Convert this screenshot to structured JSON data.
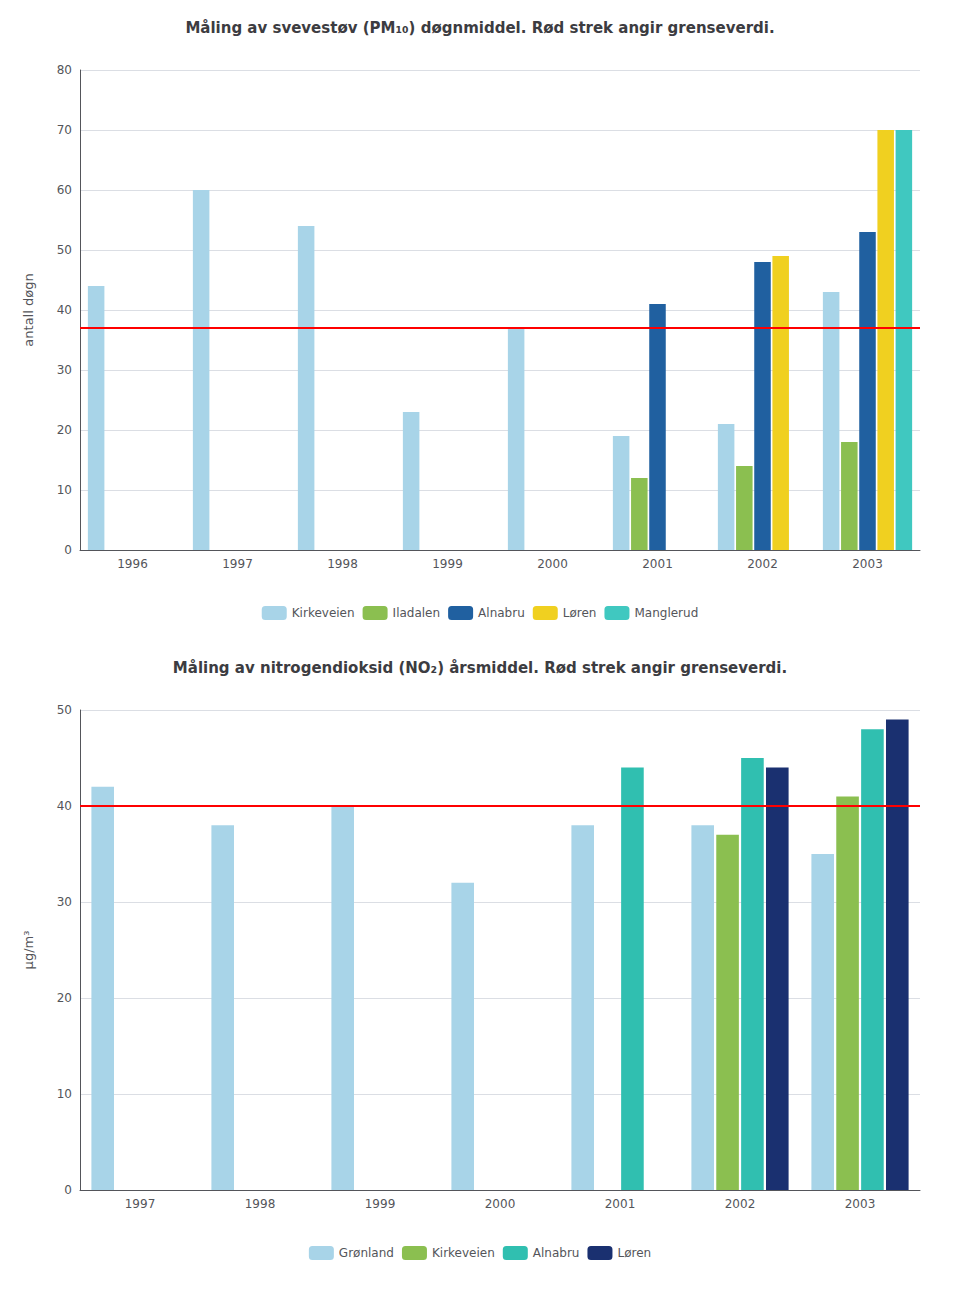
{
  "chart_data": [
    {
      "type": "bar",
      "title": "Måling av svevestøv (PM₁₀) døgnmiddel. Rød strek angir grenseverdi.",
      "y_label": "antall døgn",
      "categories": [
        "1996",
        "1997",
        "1998",
        "1999",
        "2000",
        "2001",
        "2002",
        "2003"
      ],
      "series": [
        {
          "name": "Kirkeveien",
          "color": "#a8d4e8",
          "values": [
            44,
            60,
            54,
            23,
            37,
            19,
            21,
            43
          ]
        },
        {
          "name": "Iladalen",
          "color": "#8bbf50",
          "values": [
            null,
            null,
            null,
            null,
            null,
            12,
            14,
            18
          ]
        },
        {
          "name": "Alnabru",
          "color": "#2060a0",
          "values": [
            null,
            null,
            null,
            null,
            null,
            41,
            48,
            53
          ]
        },
        {
          "name": "Løren",
          "color": "#f0d020",
          "values": [
            null,
            null,
            null,
            null,
            null,
            null,
            49,
            70
          ]
        },
        {
          "name": "Manglerud",
          "color": "#40c8c0",
          "values": [
            null,
            null,
            null,
            null,
            null,
            null,
            null,
            70
          ]
        }
      ],
      "hline": 37,
      "hline_color": "#ff0000",
      "ylim": [
        0,
        80
      ],
      "yticks": [
        0,
        10,
        20,
        30,
        40,
        50,
        60,
        70,
        80
      ],
      "grid": true,
      "legend": "bottom"
    },
    {
      "type": "bar",
      "title": "Måling av nitrogendioksid (NO₂) årsmiddel. Rød strek angir grenseverdi.",
      "y_label": "μg/m³",
      "categories": [
        "1997",
        "1998",
        "1999",
        "2000",
        "2001",
        "2002",
        "2003"
      ],
      "series": [
        {
          "name": "Grønland",
          "color": "#a8d4e8",
          "values": [
            42,
            38,
            40,
            32,
            38,
            38,
            35
          ]
        },
        {
          "name": "Kirkeveien",
          "color": "#8bbf50",
          "values": [
            null,
            null,
            null,
            null,
            null,
            37,
            41
          ]
        },
        {
          "name": "Alnabru",
          "color": "#30bfb0",
          "values": [
            null,
            null,
            null,
            null,
            44,
            45,
            48
          ]
        },
        {
          "name": "Løren",
          "color": "#1a3070",
          "values": [
            null,
            null,
            null,
            null,
            null,
            44,
            49
          ]
        }
      ],
      "hline": 40,
      "hline_color": "#ff0000",
      "ylim": [
        0,
        50
      ],
      "yticks": [
        0,
        10,
        20,
        30,
        40,
        50
      ],
      "grid": true,
      "legend": "bottom"
    }
  ]
}
